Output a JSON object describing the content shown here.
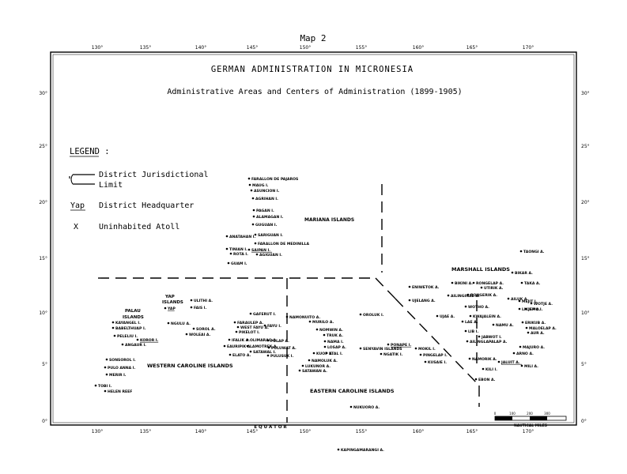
{
  "map_number": "Map 2",
  "title": "GERMAN ADMINISTRATION IN MICRONESIA",
  "subtitle": "Administrative Areas and Centers of Administration (1899-1905)",
  "legend": {
    "heading": "LEGEND :",
    "items": [
      {
        "symbol": "dashed-line",
        "label_line1": "District Jurisdictional",
        "label_line2": "Limit"
      },
      {
        "symbol": "Yap",
        "label_line1": "District Headquarter",
        "label_line2": ""
      },
      {
        "symbol": "X",
        "label_line1": "Uninhabited Atoll",
        "label_line2": ""
      }
    ]
  },
  "longitudes": [
    "130°",
    "135°",
    "140°",
    "145°",
    "150°",
    "155°",
    "160°",
    "165°",
    "170°"
  ],
  "latitudes_left": [
    "30°",
    "25°",
    "20°",
    "15°",
    "10°",
    "5°",
    "0°"
  ],
  "latitudes_right": [
    "30°",
    "25°",
    "20°",
    "15°",
    "10°",
    "5°",
    "0°"
  ],
  "equator_label": "E Q U A T O R",
  "scale": {
    "ticks": [
      "0",
      "100",
      "200",
      "300"
    ],
    "unit": "NAUTICAL MILES"
  },
  "regions": [
    {
      "name": "MARIANA ISLANDS"
    },
    {
      "name": "MARSHALL ISLANDS"
    },
    {
      "name": "WESTERN CAROLINE ISLANDS"
    },
    {
      "name": "EASTERN CAROLINE ISLANDS"
    },
    {
      "name": "PALAU ISLANDS"
    },
    {
      "name": "YAP ISLANDS"
    }
  ],
  "places": [
    {
      "name": "FARALLON DE PAJAROS",
      "hq": false
    },
    {
      "name": "MAUG I.",
      "hq": false
    },
    {
      "name": "ASUNCION I.",
      "hq": false
    },
    {
      "name": "AGRIHAN I.",
      "hq": false
    },
    {
      "name": "PAGAN I.",
      "hq": false
    },
    {
      "name": "ALAMAGAN I.",
      "hq": false
    },
    {
      "name": "GUGUAN I.",
      "hq": false
    },
    {
      "name": "SARIGUAN I.",
      "hq": false
    },
    {
      "name": "FARALLON DE MEDINILLA",
      "hq": false
    },
    {
      "name": "ANATAHAN I.",
      "hq": false
    },
    {
      "name": "TINIAN I.",
      "hq": false
    },
    {
      "name": "ROTA I.",
      "hq": false
    },
    {
      "name": "SAIPAN I.",
      "hq": true
    },
    {
      "name": "AGIGUAN I.",
      "hq": false
    },
    {
      "name": "GUAM I.",
      "hq": false
    },
    {
      "name": "ULITHI A.",
      "hq": false
    },
    {
      "name": "FAIS I.",
      "hq": false
    },
    {
      "name": "YAP",
      "hq": true
    },
    {
      "name": "NGULU A.",
      "hq": false
    },
    {
      "name": "KAYANGEL I.",
      "hq": false
    },
    {
      "name": "BABELTHUAP I.",
      "hq": false
    },
    {
      "name": "PELELIU I.",
      "hq": false
    },
    {
      "name": "KOROR I.",
      "hq": true
    },
    {
      "name": "ANGAUR I.",
      "hq": false
    },
    {
      "name": "SONSOROL I.",
      "hq": false
    },
    {
      "name": "PULO ANNA I.",
      "hq": false
    },
    {
      "name": "MERIR I.",
      "hq": false
    },
    {
      "name": "TOBI I.",
      "hq": false
    },
    {
      "name": "HELEN REEF",
      "hq": false
    },
    {
      "name": "SOROL A.",
      "hq": false
    },
    {
      "name": "WOLEAI A.",
      "hq": false
    },
    {
      "name": "GAFERUT I.",
      "hq": false
    },
    {
      "name": "FARAULEP A.",
      "hq": false
    },
    {
      "name": "WEST FAYU A.",
      "hq": false
    },
    {
      "name": "PIKELOT I.",
      "hq": false
    },
    {
      "name": "IFALIK A.",
      "hq": false
    },
    {
      "name": "LAMOTREK A.",
      "hq": false
    },
    {
      "name": "SATAWAL I.",
      "hq": false
    },
    {
      "name": "EAURIPIK A.",
      "hq": false
    },
    {
      "name": "OLIMARAO A.",
      "hq": false
    },
    {
      "name": "ELATO A.",
      "hq": false
    },
    {
      "name": "FAYU I.",
      "hq": false
    },
    {
      "name": "PULAP A.",
      "hq": false
    },
    {
      "name": "PULUWAT A.",
      "hq": false
    },
    {
      "name": "PULUSUK I.",
      "hq": false
    },
    {
      "name": "NAMONUITO A.",
      "hq": false
    },
    {
      "name": "MURILO A.",
      "hq": false
    },
    {
      "name": "NOMWIN A.",
      "hq": false
    },
    {
      "name": "TRUK A.",
      "hq": false
    },
    {
      "name": "NAMA I.",
      "hq": false
    },
    {
      "name": "LOSAP A.",
      "hq": false
    },
    {
      "name": "KUOP A.",
      "hq": false
    },
    {
      "name": "ETAL I.",
      "hq": false
    },
    {
      "name": "NAMOLUK A.",
      "hq": false
    },
    {
      "name": "LUKUNOR A.",
      "hq": false
    },
    {
      "name": "SATAWAN A.",
      "hq": false
    },
    {
      "name": "NUKUORO A.",
      "hq": false
    },
    {
      "name": "KAPINGAMARANGI A.",
      "hq": false
    },
    {
      "name": "OROLUK I.",
      "hq": false
    },
    {
      "name": "SENYAVIN ISLANDS",
      "hq": false
    },
    {
      "name": "PONAPE I.",
      "hq": true
    },
    {
      "name": "NGATIK I.",
      "hq": false
    },
    {
      "name": "MOKIL I.",
      "hq": false
    },
    {
      "name": "PINGELAP I.",
      "hq": false
    },
    {
      "name": "KUSAIE I.",
      "hq": false
    },
    {
      "name": "ENIWETOK A.",
      "hq": false
    },
    {
      "name": "UJELANG A.",
      "hq": false
    },
    {
      "name": "BIKINI A.",
      "hq": false
    },
    {
      "name": "RONGELAP A.",
      "hq": false
    },
    {
      "name": "UTIRIK A.",
      "hq": false
    },
    {
      "name": "TAKA A.",
      "hq": false
    },
    {
      "name": "AILINGINAE A.",
      "hq": false
    },
    {
      "name": "RONGERIK A.",
      "hq": false
    },
    {
      "name": "AILUK A.",
      "hq": false
    },
    {
      "name": "MEJIT I.",
      "hq": false
    },
    {
      "name": "WOTHO A.",
      "hq": false
    },
    {
      "name": "LIKIEP A.",
      "hq": false
    },
    {
      "name": "WOTJE A.",
      "hq": false
    },
    {
      "name": "JEMO I.",
      "hq": false
    },
    {
      "name": "UJAE A.",
      "hq": false
    },
    {
      "name": "KWAJALEIN A.",
      "hq": false
    },
    {
      "name": "LAE A.",
      "hq": false
    },
    {
      "name": "ERIKUB A.",
      "hq": false
    },
    {
      "name": "MALOELAP A.",
      "hq": false
    },
    {
      "name": "AUR A.",
      "hq": false
    },
    {
      "name": "LIB I.",
      "hq": false
    },
    {
      "name": "NAMU A.",
      "hq": false
    },
    {
      "name": "JABWOT I.",
      "hq": false
    },
    {
      "name": "AILINGLAPALAP A.",
      "hq": false
    },
    {
      "name": "MAJURO A.",
      "hq": false
    },
    {
      "name": "ARNO A.",
      "hq": false
    },
    {
      "name": "NAMORIK A.",
      "hq": false
    },
    {
      "name": "JALUIT A.",
      "hq": true
    },
    {
      "name": "KILI I.",
      "hq": false
    },
    {
      "name": "MILI A.",
      "hq": false
    },
    {
      "name": "EBON A.",
      "hq": false
    },
    {
      "name": "BIKAR A.",
      "hq": false
    },
    {
      "name": "TAONGI A.",
      "hq": false
    }
  ]
}
